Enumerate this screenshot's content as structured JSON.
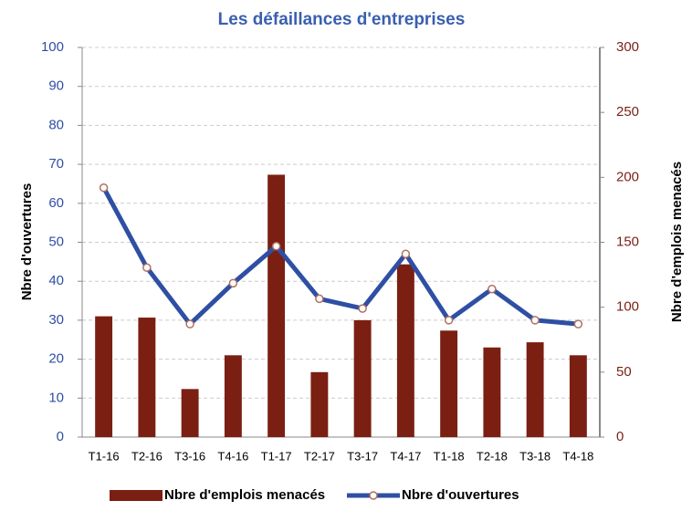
{
  "chart_data": {
    "type": "bar-line",
    "title": "Les défaillances d'entreprises",
    "y_label": "Nbre d'ouvertures",
    "y2_label": "Nbre d'emplois menacés",
    "categories": [
      "T1-16",
      "T2-16",
      "T3-16",
      "T4-16",
      "T1-17",
      "T2-17",
      "T3-17",
      "T4-17",
      "T1-18",
      "T2-18",
      "T3-18",
      "T4-18"
    ],
    "series": [
      {
        "name": "Nbre d'emplois menacés",
        "type": "bar",
        "axis": "y2",
        "color": "#7b1f12",
        "values": [
          93,
          92,
          37,
          63,
          202,
          50,
          90,
          133,
          82,
          69,
          73,
          63
        ]
      },
      {
        "name": "Nbre d'ouvertures",
        "type": "line",
        "axis": "y",
        "color": "#2e4fa3",
        "values": [
          64,
          43.5,
          29,
          39.5,
          49,
          35.5,
          33,
          47,
          30,
          38,
          30,
          29
        ]
      }
    ],
    "ylim": [
      0,
      100
    ],
    "yticks": [
      0,
      10,
      20,
      30,
      40,
      50,
      60,
      70,
      80,
      90,
      100
    ],
    "y2lim": [
      0,
      300
    ],
    "y2ticks": [
      0,
      50,
      100,
      150,
      200,
      250,
      300
    ],
    "grid": true
  }
}
